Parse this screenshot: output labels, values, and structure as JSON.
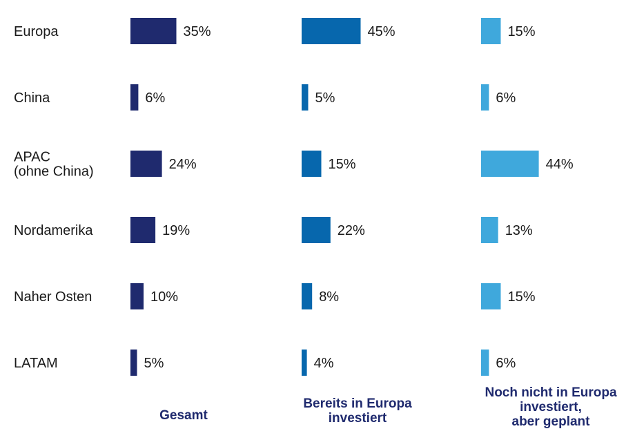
{
  "chart_data": {
    "type": "bar",
    "orientation": "horizontal",
    "layout": "small-multiples",
    "categories": [
      [
        "Europa"
      ],
      [
        "China"
      ],
      [
        "APAC",
        "(ohne China)"
      ],
      [
        "Nordamerika"
      ],
      [
        "Naher Osten"
      ],
      [
        "LATAM"
      ]
    ],
    "series": [
      {
        "name": [
          "Gesamt"
        ],
        "color": "#1f2a6e",
        "values": [
          35,
          6,
          24,
          19,
          10,
          5
        ]
      },
      {
        "name": [
          "Bereits in Europa",
          "investiert"
        ],
        "color": "#0767ad",
        "values": [
          45,
          5,
          15,
          22,
          8,
          4
        ]
      },
      {
        "name": [
          "Noch nicht in Europa",
          "investiert,",
          "aber geplant"
        ],
        "color": "#3fa8dc",
        "values": [
          15,
          6,
          44,
          13,
          15,
          6
        ]
      }
    ],
    "value_suffix": "%",
    "grid": false,
    "legend": "bottom"
  }
}
